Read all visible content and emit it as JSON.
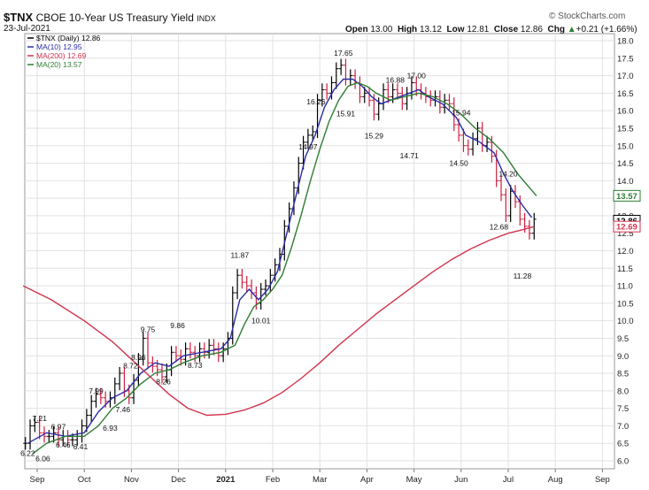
{
  "header": {
    "symbol": "$TNX",
    "name": "CBOE 10-Year US Treasury Yield",
    "exchange": "INDX",
    "date": "23-Jul-2021",
    "ohlc": [
      {
        "label": "Open",
        "value": "13.00"
      },
      {
        "label": "High",
        "value": "13.12"
      },
      {
        "label": "Low",
        "value": "12.81"
      },
      {
        "label": "Close",
        "value": "12.86"
      },
      {
        "label": "Chg",
        "value": "+0.21 (+1.66%)"
      }
    ],
    "chg_icon": "triangle-up-icon",
    "brand": "© StockCharts.com"
  },
  "legend": [
    {
      "text": "$TNX (Daily) 12.86",
      "color": "#000000"
    },
    {
      "text": "MA(10) 12.95",
      "color": "#2b2ba6"
    },
    {
      "text": "MA(200) 12.69",
      "color": "#d1334f"
    },
    {
      "text": "MA(20) 13.57",
      "color": "#2e7d32"
    }
  ],
  "chart_data": {
    "type": "line",
    "title": "$TNX CBOE 10-Year US Treasury Yield",
    "ylim": [
      6.0,
      18.0
    ],
    "y_ticks": [
      "6.0",
      "6.5",
      "7.0",
      "7.5",
      "8.0",
      "8.5",
      "9.0",
      "9.5",
      "10.0",
      "10.5",
      "11.0",
      "11.5",
      "12.0",
      "12.5",
      "13.0",
      "13.5",
      "14.0",
      "14.5",
      "15.0",
      "15.5",
      "16.0",
      "16.5",
      "17.0",
      "17.5",
      "18.0"
    ],
    "x_ticks": [
      {
        "label": "Sep",
        "x": 0
      },
      {
        "label": "Oct",
        "x": 1
      },
      {
        "label": "Nov",
        "x": 2
      },
      {
        "label": "Dec",
        "x": 3
      },
      {
        "label": "2021",
        "x": 4
      },
      {
        "label": "Feb",
        "x": 5
      },
      {
        "label": "Mar",
        "x": 6
      },
      {
        "label": "Apr",
        "x": 7
      },
      {
        "label": "May",
        "x": 8
      },
      {
        "label": "Jun",
        "x": 9
      },
      {
        "label": "Jul",
        "x": 10
      },
      {
        "label": "Aug",
        "x": 11
      },
      {
        "label": "Sep",
        "x": 12
      }
    ],
    "series": [
      {
        "name": "$TNX (Daily)",
        "color": "#000000",
        "points": [
          [
            -0.25,
            6.5
          ],
          [
            -0.15,
            7.0
          ],
          [
            -0.05,
            7.1
          ],
          [
            0.05,
            6.8
          ],
          [
            0.15,
            6.7
          ],
          [
            0.25,
            6.7
          ],
          [
            0.35,
            6.8
          ],
          [
            0.45,
            6.6
          ],
          [
            0.55,
            6.7
          ],
          [
            0.65,
            6.6
          ],
          [
            0.75,
            6.6
          ],
          [
            0.85,
            6.7
          ],
          [
            0.95,
            7.0
          ],
          [
            1.05,
            7.3
          ],
          [
            1.15,
            7.7
          ],
          [
            1.25,
            7.9
          ],
          [
            1.35,
            7.8
          ],
          [
            1.45,
            7.7
          ],
          [
            1.55,
            7.8
          ],
          [
            1.65,
            8.2
          ],
          [
            1.75,
            8.5
          ],
          [
            1.85,
            8.0
          ],
          [
            1.95,
            7.8
          ],
          [
            2.05,
            8.3
          ],
          [
            2.15,
            8.9
          ],
          [
            2.25,
            9.5
          ],
          [
            2.35,
            8.8
          ],
          [
            2.45,
            8.7
          ],
          [
            2.55,
            8.6
          ],
          [
            2.65,
            8.4
          ],
          [
            2.75,
            8.6
          ],
          [
            2.85,
            9.1
          ],
          [
            2.95,
            9.0
          ],
          [
            3.05,
            8.9
          ],
          [
            3.15,
            9.2
          ],
          [
            3.25,
            9.1
          ],
          [
            3.35,
            9.0
          ],
          [
            3.45,
            9.2
          ],
          [
            3.55,
            9.1
          ],
          [
            3.65,
            9.3
          ],
          [
            3.75,
            9.2
          ],
          [
            3.85,
            9.0
          ],
          [
            3.95,
            9.2
          ],
          [
            4.05,
            9.5
          ],
          [
            4.15,
            10.8
          ],
          [
            4.25,
            11.3
          ],
          [
            4.35,
            11.1
          ],
          [
            4.45,
            11.0
          ],
          [
            4.55,
            10.8
          ],
          [
            4.65,
            10.5
          ],
          [
            4.75,
            10.9
          ],
          [
            4.85,
            11.0
          ],
          [
            4.95,
            11.3
          ],
          [
            5.05,
            11.6
          ],
          [
            5.15,
            11.9
          ],
          [
            5.25,
            12.7
          ],
          [
            5.35,
            13.2
          ],
          [
            5.45,
            13.8
          ],
          [
            5.55,
            14.5
          ],
          [
            5.65,
            15.1
          ],
          [
            5.75,
            15.3
          ],
          [
            5.85,
            15.4
          ],
          [
            5.95,
            16.3
          ],
          [
            6.05,
            16.6
          ],
          [
            6.15,
            16.5
          ],
          [
            6.25,
            16.8
          ],
          [
            6.35,
            17.2
          ],
          [
            6.45,
            17.3
          ],
          [
            6.55,
            16.9
          ],
          [
            6.65,
            17.0
          ],
          [
            6.75,
            16.8
          ],
          [
            6.85,
            16.4
          ],
          [
            6.95,
            16.5
          ],
          [
            7.05,
            16.3
          ],
          [
            7.15,
            15.9
          ],
          [
            7.25,
            16.2
          ],
          [
            7.35,
            16.6
          ],
          [
            7.45,
            16.4
          ],
          [
            7.55,
            16.6
          ],
          [
            7.65,
            16.5
          ],
          [
            7.75,
            16.2
          ],
          [
            7.85,
            16.5
          ],
          [
            7.95,
            16.8
          ],
          [
            8.05,
            16.6
          ],
          [
            8.15,
            16.5
          ],
          [
            8.25,
            16.4
          ],
          [
            8.35,
            16.3
          ],
          [
            8.45,
            16.4
          ],
          [
            8.55,
            16.1
          ],
          [
            8.65,
            16.3
          ],
          [
            8.75,
            16.2
          ],
          [
            8.85,
            15.6
          ],
          [
            8.95,
            15.3
          ],
          [
            9.05,
            15.0
          ],
          [
            9.15,
            14.9
          ],
          [
            9.25,
            15.2
          ],
          [
            9.35,
            15.5
          ],
          [
            9.45,
            15.0
          ],
          [
            9.55,
            15.1
          ],
          [
            9.65,
            14.7
          ],
          [
            9.75,
            14.0
          ],
          [
            9.85,
            13.6
          ],
          [
            9.95,
            13.0
          ],
          [
            10.05,
            13.7
          ],
          [
            10.15,
            13.4
          ],
          [
            10.25,
            12.9
          ],
          [
            10.35,
            12.7
          ],
          [
            10.45,
            12.5
          ],
          [
            10.55,
            12.9
          ]
        ]
      },
      {
        "name": "MA(10)",
        "color": "#2b2ba6",
        "points": [
          [
            -0.2,
            6.5
          ],
          [
            0.2,
            6.8
          ],
          [
            0.6,
            6.7
          ],
          [
            1.0,
            6.8
          ],
          [
            1.3,
            7.4
          ],
          [
            1.6,
            7.8
          ],
          [
            1.9,
            8.0
          ],
          [
            2.2,
            8.5
          ],
          [
            2.5,
            8.8
          ],
          [
            2.8,
            8.7
          ],
          [
            3.1,
            9.0
          ],
          [
            3.5,
            9.1
          ],
          [
            3.9,
            9.2
          ],
          [
            4.1,
            9.5
          ],
          [
            4.3,
            10.6
          ],
          [
            4.5,
            10.9
          ],
          [
            4.7,
            10.6
          ],
          [
            4.9,
            10.9
          ],
          [
            5.1,
            11.4
          ],
          [
            5.3,
            12.5
          ],
          [
            5.5,
            13.6
          ],
          [
            5.7,
            14.7
          ],
          [
            5.9,
            15.3
          ],
          [
            6.1,
            16.1
          ],
          [
            6.3,
            16.6
          ],
          [
            6.5,
            16.9
          ],
          [
            6.7,
            16.9
          ],
          [
            6.9,
            16.7
          ],
          [
            7.1,
            16.4
          ],
          [
            7.3,
            16.2
          ],
          [
            7.5,
            16.3
          ],
          [
            7.7,
            16.4
          ],
          [
            7.9,
            16.5
          ],
          [
            8.1,
            16.6
          ],
          [
            8.3,
            16.4
          ],
          [
            8.6,
            16.2
          ],
          [
            8.9,
            15.8
          ],
          [
            9.1,
            15.3
          ],
          [
            9.4,
            15.1
          ],
          [
            9.7,
            14.8
          ],
          [
            9.9,
            14.2
          ],
          [
            10.1,
            13.7
          ],
          [
            10.3,
            13.3
          ],
          [
            10.5,
            12.95
          ]
        ]
      },
      {
        "name": "MA(20)",
        "color": "#2e7d32",
        "points": [
          [
            -0.1,
            6.2
          ],
          [
            0.2,
            6.5
          ],
          [
            0.6,
            6.7
          ],
          [
            1.0,
            6.7
          ],
          [
            1.3,
            7.0
          ],
          [
            1.6,
            7.5
          ],
          [
            1.9,
            7.8
          ],
          [
            2.2,
            8.2
          ],
          [
            2.5,
            8.5
          ],
          [
            2.8,
            8.6
          ],
          [
            3.1,
            8.8
          ],
          [
            3.5,
            9.0
          ],
          [
            3.9,
            9.1
          ],
          [
            4.2,
            9.3
          ],
          [
            4.4,
            9.9
          ],
          [
            4.6,
            10.4
          ],
          [
            4.8,
            10.6
          ],
          [
            5.0,
            10.9
          ],
          [
            5.2,
            11.3
          ],
          [
            5.4,
            12.1
          ],
          [
            5.6,
            13.0
          ],
          [
            5.8,
            14.0
          ],
          [
            6.0,
            14.9
          ],
          [
            6.2,
            15.7
          ],
          [
            6.4,
            16.3
          ],
          [
            6.6,
            16.7
          ],
          [
            6.8,
            16.8
          ],
          [
            7.0,
            16.7
          ],
          [
            7.2,
            16.5
          ],
          [
            7.5,
            16.3
          ],
          [
            7.8,
            16.4
          ],
          [
            8.1,
            16.5
          ],
          [
            8.4,
            16.4
          ],
          [
            8.7,
            16.2
          ],
          [
            9.0,
            15.9
          ],
          [
            9.3,
            15.5
          ],
          [
            9.6,
            15.2
          ],
          [
            9.9,
            14.8
          ],
          [
            10.2,
            14.2
          ],
          [
            10.6,
            13.57
          ]
        ]
      },
      {
        "name": "MA(200)",
        "color": "#d1334f",
        "points": [
          [
            -0.3,
            11.0
          ],
          [
            0.3,
            10.6
          ],
          [
            1.0,
            10.0
          ],
          [
            1.6,
            9.4
          ],
          [
            2.0,
            8.9
          ],
          [
            2.4,
            8.4
          ],
          [
            2.8,
            7.9
          ],
          [
            3.2,
            7.5
          ],
          [
            3.6,
            7.3
          ],
          [
            4.0,
            7.33
          ],
          [
            4.4,
            7.45
          ],
          [
            4.8,
            7.65
          ],
          [
            5.2,
            7.95
          ],
          [
            5.6,
            8.35
          ],
          [
            6.0,
            8.8
          ],
          [
            6.4,
            9.3
          ],
          [
            6.8,
            9.75
          ],
          [
            7.2,
            10.2
          ],
          [
            7.6,
            10.6
          ],
          [
            8.0,
            11.0
          ],
          [
            8.4,
            11.4
          ],
          [
            8.8,
            11.75
          ],
          [
            9.2,
            12.05
          ],
          [
            9.6,
            12.3
          ],
          [
            10.0,
            12.5
          ],
          [
            10.3,
            12.6
          ],
          [
            10.55,
            12.69
          ]
        ]
      }
    ],
    "annotations": [
      {
        "text": "6.22",
        "x": -0.2,
        "y": 6.22
      },
      {
        "text": "7.21",
        "x": 0.05,
        "y": 7.21
      },
      {
        "text": "6.06",
        "x": 0.12,
        "y": 6.06
      },
      {
        "text": "6.97",
        "x": 0.45,
        "y": 6.97
      },
      {
        "text": "6.46",
        "x": 0.55,
        "y": 6.46
      },
      {
        "text": "6.41",
        "x": 0.92,
        "y": 6.41
      },
      {
        "text": "7.99",
        "x": 1.25,
        "y": 7.99
      },
      {
        "text": "6.93",
        "x": 1.55,
        "y": 6.93
      },
      {
        "text": "7.46",
        "x": 1.82,
        "y": 7.46
      },
      {
        "text": "8.72",
        "x": 1.98,
        "y": 8.72
      },
      {
        "text": "8.96",
        "x": 2.15,
        "y": 8.96
      },
      {
        "text": "9.75",
        "x": 2.35,
        "y": 9.75
      },
      {
        "text": "8.26",
        "x": 2.68,
        "y": 8.26
      },
      {
        "text": "9.86",
        "x": 2.98,
        "y": 9.86
      },
      {
        "text": "8.73",
        "x": 3.35,
        "y": 8.73
      },
      {
        "text": "11.87",
        "x": 4.3,
        "y": 11.87
      },
      {
        "text": "10.01",
        "x": 4.75,
        "y": 10.01
      },
      {
        "text": "16.26",
        "x": 5.92,
        "y": 16.26
      },
      {
        "text": "14.97",
        "x": 5.75,
        "y": 14.97
      },
      {
        "text": "17.65",
        "x": 6.5,
        "y": 17.65
      },
      {
        "text": "15.91",
        "x": 6.55,
        "y": 15.91
      },
      {
        "text": "15.29",
        "x": 7.15,
        "y": 15.29
      },
      {
        "text": "16.88",
        "x": 7.6,
        "y": 16.88
      },
      {
        "text": "17.00",
        "x": 8.05,
        "y": 17.0
      },
      {
        "text": "14.71",
        "x": 7.9,
        "y": 14.71
      },
      {
        "text": "15.94",
        "x": 9.0,
        "y": 15.94
      },
      {
        "text": "14.50",
        "x": 8.95,
        "y": 14.5
      },
      {
        "text": "14.20",
        "x": 10.0,
        "y": 14.2
      },
      {
        "text": "12.68",
        "x": 9.8,
        "y": 12.68
      },
      {
        "text": "11.28",
        "x": 10.3,
        "y": 11.28
      }
    ],
    "right_labels": [
      {
        "text": "13.57",
        "y": 13.57,
        "color": "#2e7d32"
      },
      {
        "text": "12.86",
        "y": 12.86,
        "color": "#000000"
      },
      {
        "text": "12.69",
        "y": 12.69,
        "color": "#d1334f"
      }
    ],
    "grid": true
  }
}
